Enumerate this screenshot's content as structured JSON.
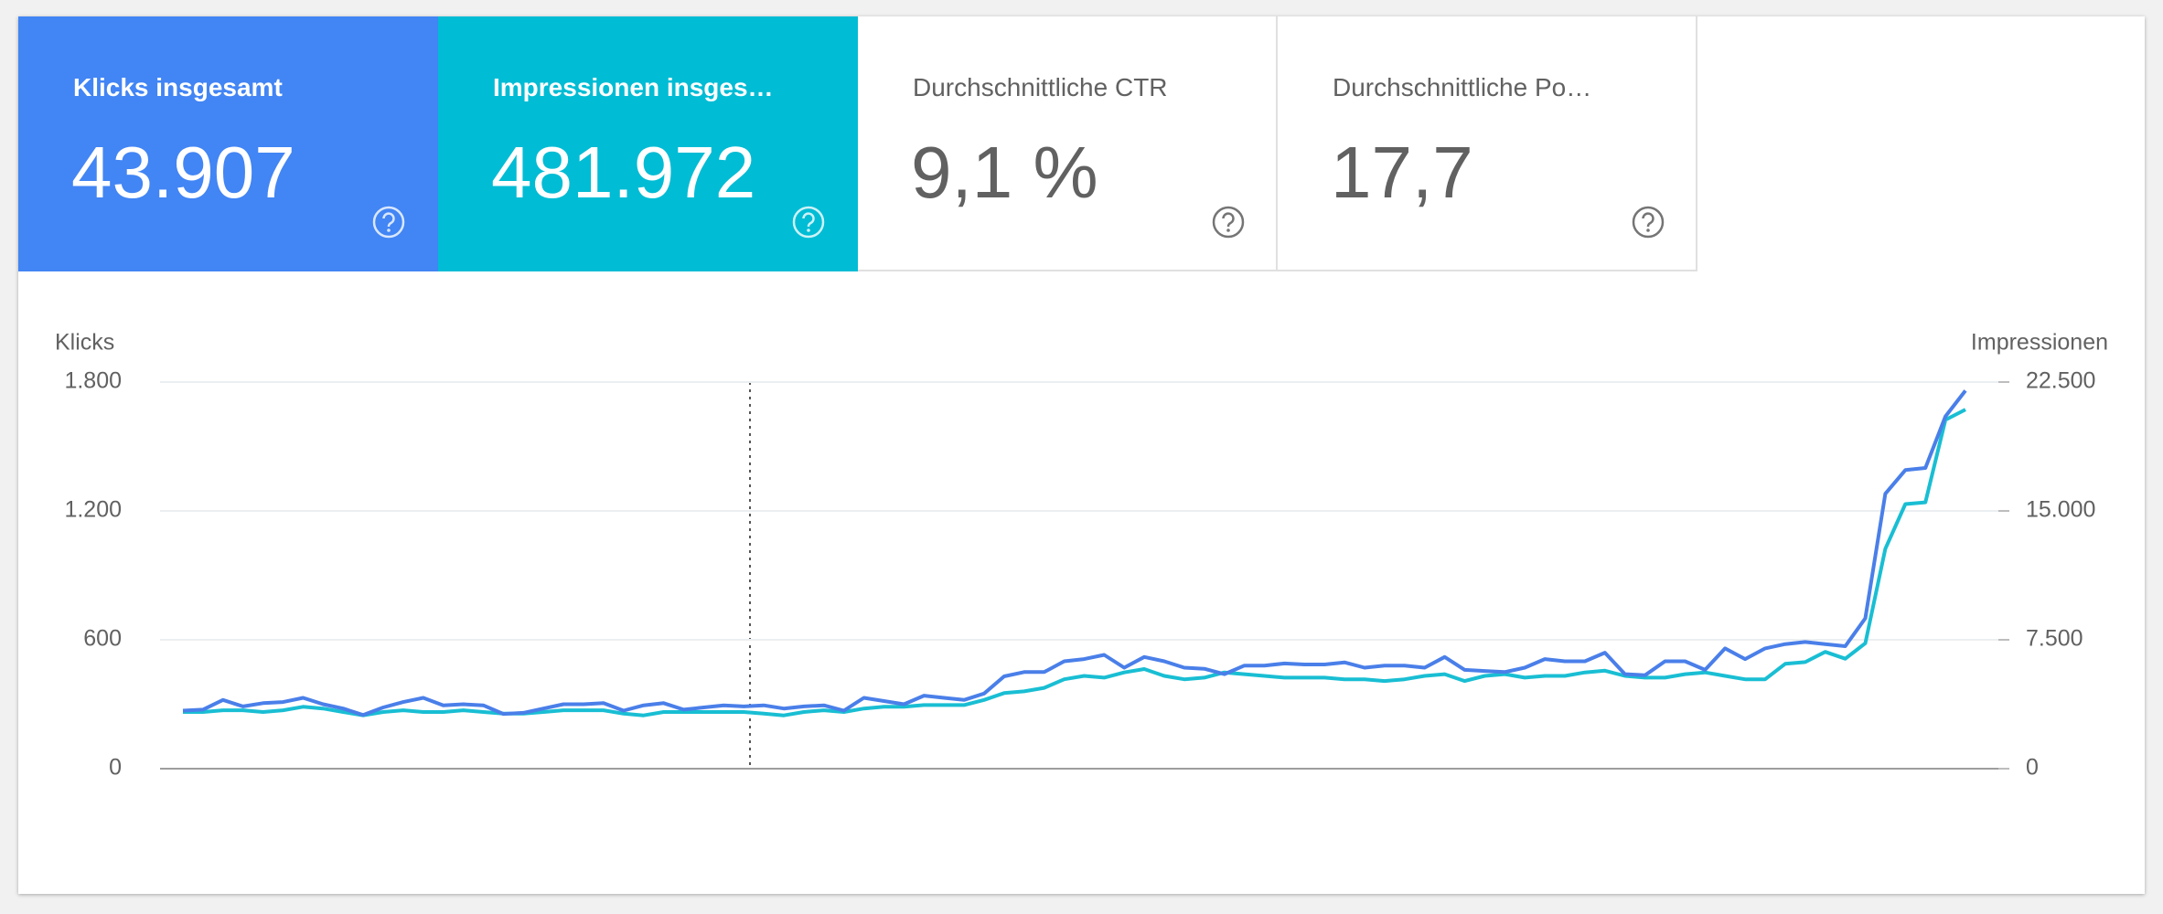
{
  "metrics": [
    {
      "label": "Klicks insgesamt",
      "value": "43.907"
    },
    {
      "label": "Impressionen insges…",
      "value": "481.972"
    },
    {
      "label": "Durchschnittliche CTR",
      "value": "9,1 %"
    },
    {
      "label": "Durchschnittliche Po…",
      "value": "17,7"
    }
  ],
  "chart_data": {
    "type": "line",
    "ylabel": "Klicks",
    "y2label": "Impressionen",
    "ylim": [
      0,
      1800
    ],
    "yticks": [
      0,
      600,
      {
        "value": 1200,
        "label": "1.200"
      },
      {
        "value": 1800,
        "label": "1.800"
      }
    ],
    "y2lim": [
      0,
      22500
    ],
    "y2ticks": [
      0,
      {
        "value": 7500,
        "label": "7.500"
      },
      {
        "value": 15000,
        "label": "15.000"
      },
      {
        "value": 22500,
        "label": "22.500"
      }
    ],
    "grid": true,
    "series": [
      {
        "name": "Klicks",
        "color": "#4a7fe9",
        "values": [
          270,
          275,
          320,
          290,
          305,
          310,
          330,
          300,
          280,
          250,
          285,
          310,
          330,
          295,
          300,
          295,
          255,
          260,
          280,
          300,
          300,
          305,
          270,
          295,
          305,
          275,
          285,
          295,
          290,
          295,
          280,
          290,
          295,
          270,
          330,
          315,
          300,
          340,
          330,
          320,
          350,
          430,
          450,
          450,
          500,
          510,
          530,
          470,
          520,
          500,
          470,
          465,
          440,
          480,
          480,
          490,
          485,
          485,
          495,
          470,
          480,
          480,
          470,
          520,
          460,
          455,
          450,
          470,
          510,
          500,
          500,
          540,
          440,
          435,
          500,
          500,
          460,
          560,
          510,
          560,
          580,
          590,
          580,
          570,
          700,
          1280,
          1390,
          1400,
          1640,
          1760
        ]
      },
      {
        "name": "Impressionen",
        "color": "#19bed3",
        "axis": "y2",
        "values": [
          3300,
          3300,
          3400,
          3400,
          3300,
          3400,
          3600,
          3500,
          3300,
          3100,
          3300,
          3400,
          3300,
          3300,
          3400,
          3300,
          3200,
          3200,
          3300,
          3400,
          3400,
          3400,
          3200,
          3100,
          3300,
          3300,
          3300,
          3300,
          3300,
          3200,
          3100,
          3300,
          3400,
          3300,
          3500,
          3600,
          3600,
          3700,
          3700,
          3700,
          4000,
          4400,
          4500,
          4700,
          5200,
          5400,
          5300,
          5600,
          5800,
          5400,
          5200,
          5300,
          5600,
          5500,
          5400,
          5300,
          5300,
          5300,
          5200,
          5200,
          5100,
          5200,
          5400,
          5500,
          5100,
          5400,
          5500,
          5300,
          5400,
          5400,
          5600,
          5700,
          5400,
          5300,
          5300,
          5500,
          5600,
          5400,
          5200,
          5200,
          6100,
          6200,
          6800,
          6400,
          7300,
          12800,
          15400,
          15500,
          20300,
          20900
        ]
      }
    ]
  }
}
